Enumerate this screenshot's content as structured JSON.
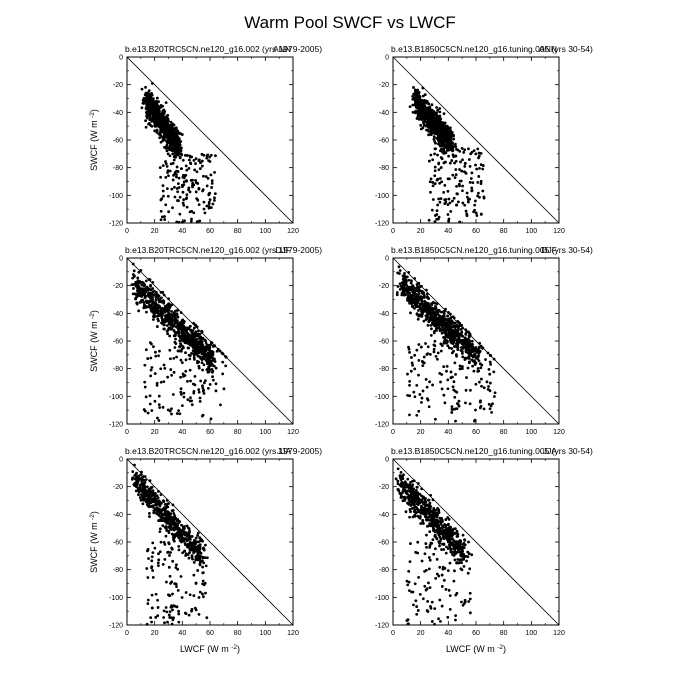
{
  "figure": {
    "title": "Warm Pool SWCF vs LWCF",
    "xlabel": "LWCF (W m",
    "ylabel": "SWCF (W m",
    "unit_exponent": "-2",
    "unit_close": ")"
  },
  "chart_data": [
    {
      "type": "scatter",
      "title": "b.e13.B20TRC5CN.ne120_g16.002 (yrs 1979-2005)",
      "season": "ANN",
      "xlim": [
        0,
        120
      ],
      "ylim": [
        -120,
        0
      ],
      "xticks": [
        0,
        20,
        40,
        60,
        80,
        100,
        120
      ],
      "yticks": [
        0,
        -20,
        -40,
        -60,
        -80,
        -100,
        -120
      ],
      "reference_line": "y = -x",
      "cluster": {
        "x_range": [
          14,
          38
        ],
        "y_at_x_start": -32,
        "y_at_x_end": -66,
        "spread": 9
      },
      "tail": {
        "x_range": [
          24,
          64
        ],
        "y_range": [
          -70,
          -120
        ]
      },
      "approx_points": 900
    },
    {
      "type": "scatter",
      "title": "b.e13.B1850C5CN.ne120_g16.tuning.005 (yrs 30-54)",
      "season": "ANN",
      "xlim": [
        0,
        120
      ],
      "ylim": [
        -120,
        0
      ],
      "xticks": [
        0,
        20,
        40,
        60,
        80,
        100,
        120
      ],
      "yticks": [
        0,
        -20,
        -40,
        -60,
        -80,
        -100,
        -120
      ],
      "reference_line": "y = -x",
      "cluster": {
        "x_range": [
          16,
          42
        ],
        "y_at_x_start": -32,
        "y_at_x_end": -62,
        "spread": 9
      },
      "tail": {
        "x_range": [
          26,
          66
        ],
        "y_range": [
          -66,
          -120
        ]
      },
      "approx_points": 900
    },
    {
      "type": "scatter",
      "title": "b.e13.B20TRC5CN.ne120_g16.002 (yrs 1979-2005)",
      "season": "DJF",
      "xlim": [
        0,
        120
      ],
      "ylim": [
        -120,
        0
      ],
      "xticks": [
        0,
        20,
        40,
        60,
        80,
        100,
        120
      ],
      "yticks": [
        0,
        -20,
        -40,
        -60,
        -80,
        -100,
        -120
      ],
      "reference_line": "y = -x",
      "cluster": {
        "x_range": [
          5,
          62
        ],
        "y_at_x_start": -18,
        "y_at_x_end": -74,
        "spread": 10
      },
      "tail": {
        "x_range": [
          12,
          72
        ],
        "y_range": [
          -60,
          -118
        ]
      },
      "approx_points": 900
    },
    {
      "type": "scatter",
      "title": "b.e13.B1850C5CN.ne120_g16.tuning.005 (yrs 30-54)",
      "season": "DJF",
      "xlim": [
        0,
        120
      ],
      "ylim": [
        -120,
        0
      ],
      "xticks": [
        0,
        20,
        40,
        60,
        80,
        100,
        120
      ],
      "yticks": [
        0,
        -20,
        -40,
        -60,
        -80,
        -100,
        -120
      ],
      "reference_line": "y = -x",
      "cluster": {
        "x_range": [
          5,
          62
        ],
        "y_at_x_start": -18,
        "y_at_x_end": -72,
        "spread": 10
      },
      "tail": {
        "x_range": [
          10,
          74
        ],
        "y_range": [
          -60,
          -118
        ]
      },
      "approx_points": 900
    },
    {
      "type": "scatter",
      "title": "b.e13.B20TRC5CN.ne120_g16.002 (yrs 1979-2005)",
      "season": "JJA",
      "xlim": [
        0,
        120
      ],
      "ylim": [
        -120,
        0
      ],
      "xticks": [
        0,
        20,
        40,
        60,
        80,
        100,
        120
      ],
      "yticks": [
        0,
        -20,
        -40,
        -60,
        -80,
        -100,
        -120
      ],
      "reference_line": "y = -x",
      "cluster": {
        "x_range": [
          5,
          55
        ],
        "y_at_x_start": -14,
        "y_at_x_end": -72,
        "spread": 9
      },
      "tail": {
        "x_range": [
          14,
          58
        ],
        "y_range": [
          -60,
          -120
        ]
      },
      "approx_points": 700
    },
    {
      "type": "scatter",
      "title": "b.e13.B1850C5CN.ne120_g16.tuning.005 (yrs 30-54)",
      "season": "JJA",
      "xlim": [
        0,
        120
      ],
      "ylim": [
        -120,
        0
      ],
      "xticks": [
        0,
        20,
        40,
        60,
        80,
        100,
        120
      ],
      "yticks": [
        0,
        -20,
        -40,
        -60,
        -80,
        -100,
        -120
      ],
      "reference_line": "y = -x",
      "cluster": {
        "x_range": [
          5,
          52
        ],
        "y_at_x_start": -18,
        "y_at_x_end": -68,
        "spread": 10
      },
      "tail": {
        "x_range": [
          10,
          58
        ],
        "y_range": [
          -58,
          -120
        ]
      },
      "approx_points": 700
    }
  ]
}
